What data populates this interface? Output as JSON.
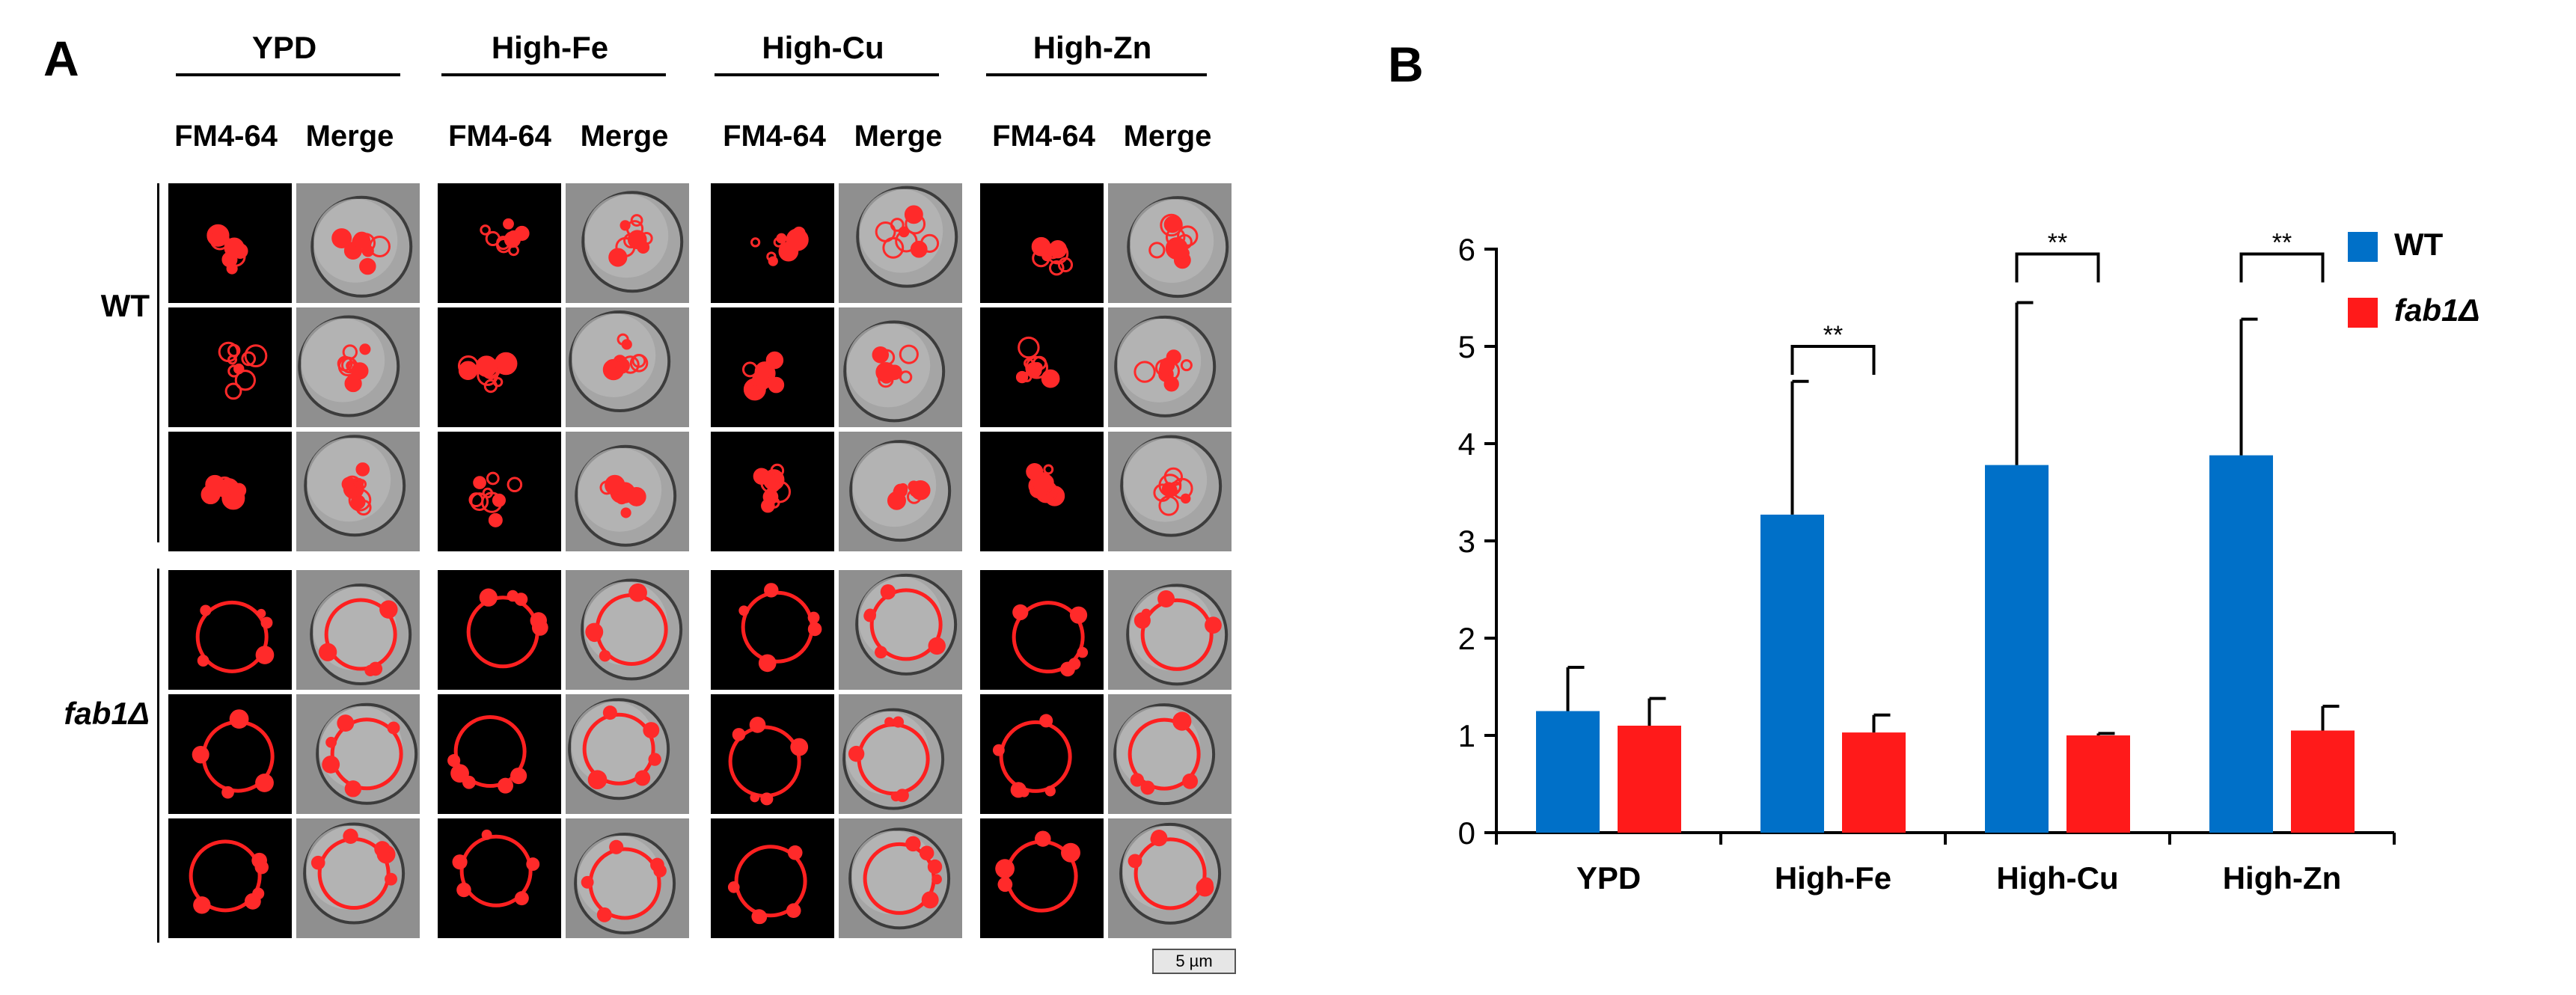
{
  "panel_a": {
    "letter": "A",
    "conditions": [
      "YPD",
      "High-Fe",
      "High-Cu",
      "High-Zn"
    ],
    "subcolumns": [
      "FM4-64",
      "Merge"
    ],
    "rows": [
      {
        "label": "WT",
        "italic": false,
        "morphology": "fragmented"
      },
      {
        "label": "fab1Δ",
        "italic": true,
        "morphology": "enlarged"
      }
    ],
    "scalebar": "5 µm"
  },
  "panel_b": {
    "letter": "B",
    "legend": [
      {
        "label": "WT",
        "italic": false,
        "color": "#0070c8"
      },
      {
        "label": "fab1Δ",
        "italic": true,
        "color": "#ff1a1a"
      }
    ]
  },
  "chart_data": {
    "type": "bar",
    "categories": [
      "YPD",
      "High-Fe",
      "High-Cu",
      "High-Zn"
    ],
    "series": [
      {
        "name": "WT",
        "color": "#0070c8",
        "values": [
          1.25,
          3.27,
          3.78,
          3.88
        ],
        "errors": [
          0.45,
          1.37,
          1.67,
          1.4
        ]
      },
      {
        "name": "fab1Δ",
        "color": "#ff1a1a",
        "values": [
          1.1,
          1.03,
          1.0,
          1.05
        ],
        "errors": [
          0.28,
          0.18,
          0.02,
          0.25
        ]
      }
    ],
    "ylim": [
      0,
      6
    ],
    "yticks": [
      "0",
      "1",
      "2",
      "3",
      "4",
      "5",
      "6"
    ],
    "title": "",
    "xlabel": "",
    "ylabel": "",
    "significance": [
      {
        "category": "High-Fe",
        "label": "**",
        "y": 5.0
      },
      {
        "category": "High-Cu",
        "label": "**",
        "y": 5.95
      },
      {
        "category": "High-Zn",
        "label": "**",
        "y": 5.95
      }
    ],
    "legend_position": "top-right",
    "grid": false
  }
}
